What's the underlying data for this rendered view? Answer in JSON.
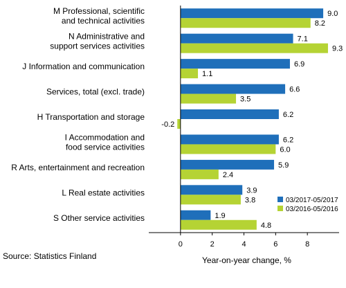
{
  "chart_data": {
    "type": "bar",
    "orientation": "horizontal",
    "categories": [
      [
        "M Professional, scientific",
        "and technical activities"
      ],
      [
        "N Administrative and",
        "support services activities"
      ],
      [
        "J Information and communication"
      ],
      [
        "Services, total (excl. trade)"
      ],
      [
        "H Transportation and storage"
      ],
      [
        "I Accommodation and",
        "food service activities"
      ],
      [
        "R Arts, entertainment and recreation"
      ],
      [
        "L Real estate activities"
      ],
      [
        "S Other service activities"
      ]
    ],
    "series": [
      {
        "name": "03/2017-05/2017",
        "color": "#1f6fba",
        "values": [
          9.0,
          7.1,
          6.9,
          6.6,
          6.2,
          6.2,
          5.9,
          3.9,
          1.9
        ]
      },
      {
        "name": "03/2016-05/2016",
        "color": "#b5d334",
        "values": [
          8.2,
          9.3,
          1.1,
          3.5,
          -0.2,
          6.0,
          2.4,
          3.8,
          4.8
        ]
      }
    ],
    "xlabel": "Year-on-year change, %",
    "xlim": [
      -2,
      10
    ],
    "xticks": [
      0,
      2,
      4,
      6,
      8
    ],
    "tick_labels": [
      "0",
      "2",
      "4",
      "6",
      "8"
    ],
    "legend_position": "bottom-right",
    "grid": false
  },
  "source": "Source: Statistics Finland"
}
